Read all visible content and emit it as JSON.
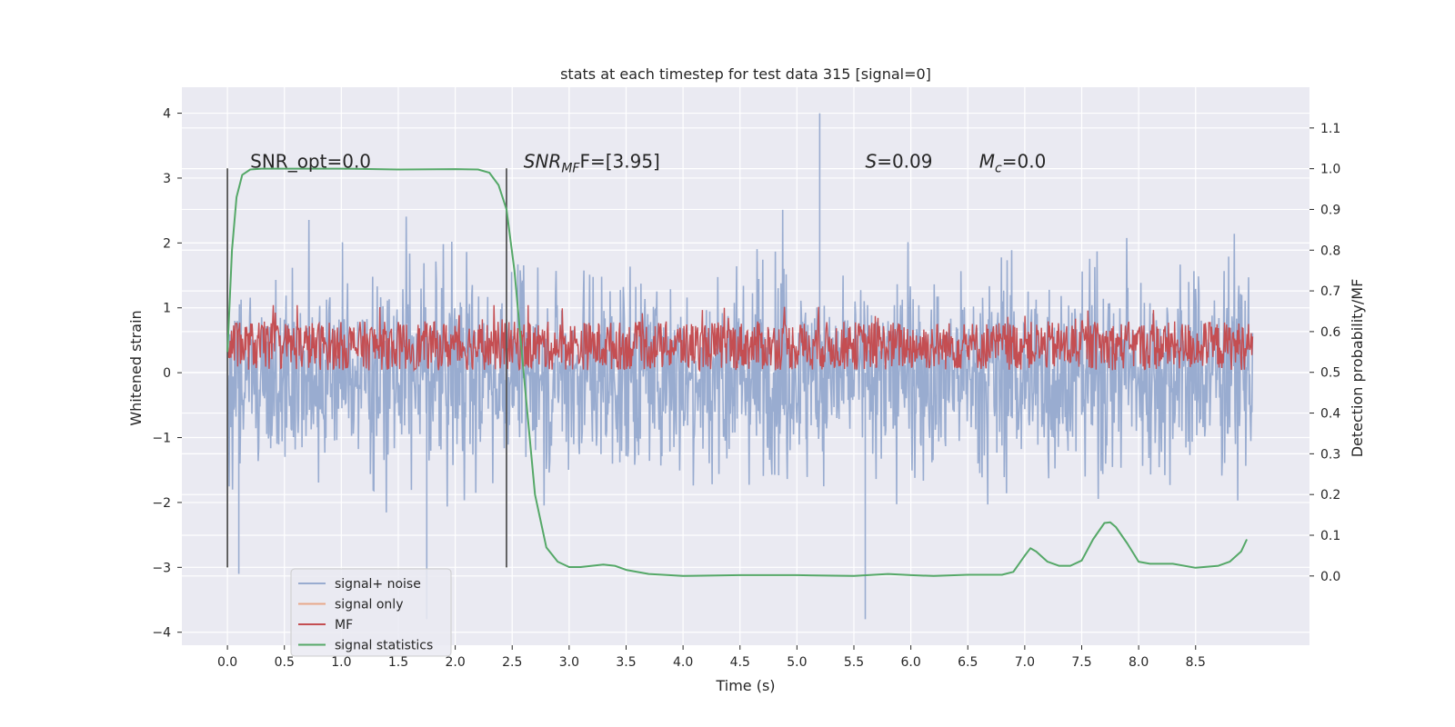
{
  "chart_data": {
    "type": "line",
    "title": "stats at each timestep for test data 315 [signal=0]",
    "xlabel": "Time (s)",
    "ylabel": "Whitened strain",
    "y2label": "Detection probability/MF",
    "xlim": [
      -0.4,
      9.5
    ],
    "ylim": [
      -4.2,
      4.4
    ],
    "y2lim": [
      -0.17,
      1.2
    ],
    "xticks": [
      0.0,
      0.5,
      1.0,
      1.5,
      2.0,
      2.5,
      3.0,
      3.5,
      4.0,
      4.5,
      5.0,
      5.5,
      6.0,
      6.5,
      7.0,
      7.5,
      8.0,
      8.5
    ],
    "yticks": [
      4,
      3,
      2,
      1,
      0,
      -1,
      -2,
      -3,
      -4
    ],
    "y2ticks": [
      1.1,
      1.0,
      0.9,
      0.8,
      0.7,
      0.6,
      0.5,
      0.4,
      0.3,
      0.2,
      0.1,
      0.0
    ],
    "grid": true,
    "legend_position": "lower-left",
    "colors": {
      "plot_bg": "#eaeaf2",
      "grid": "#ffffff",
      "noise": "#99acd0",
      "signal": "#e8a88a",
      "mf": "#c44e52",
      "stats": "#55a868",
      "vline": "#555555"
    },
    "annotations": [
      {
        "id": "snr-opt",
        "text": "SNR_opt=0.0",
        "x": 0.2,
        "y2": 1.0
      },
      {
        "id": "snr-mf",
        "text": "SNR",
        "sub": "MF",
        "rest": "F=[3.95]",
        "x": 2.6,
        "y2": 1.0
      },
      {
        "id": "s-stat",
        "text": "S",
        "rest": "=0.09",
        "x": 5.6,
        "y2": 1.0
      },
      {
        "id": "mc-stat",
        "text": "M",
        "sub": "c",
        "rest": "=0.0",
        "x": 6.6,
        "y2": 1.0
      }
    ],
    "vlines": [
      0.0,
      2.45
    ],
    "vline_range": [
      -3.0,
      3.15
    ],
    "series": [
      {
        "name": "signal+ noise",
        "key": "noise",
        "range": [
          0.0,
          9.0
        ],
        "typical": [
          -2.5,
          2.5
        ],
        "extremes": [
          {
            "x": 5.2,
            "y": 4.0
          },
          {
            "x": 5.6,
            "y": -3.8
          },
          {
            "x": 1.75,
            "y": -3.8
          },
          {
            "x": 0.1,
            "y": -3.1
          }
        ]
      },
      {
        "name": "signal only",
        "key": "signal",
        "values": []
      },
      {
        "name": "MF",
        "key": "mf",
        "range": [
          0.0,
          9.0
        ],
        "typical_y2": [
          0.5,
          0.65
        ]
      },
      {
        "name": "signal statistics",
        "key": "stats",
        "x": [
          0.0,
          0.04,
          0.08,
          0.13,
          0.2,
          0.3,
          0.5,
          1.0,
          1.5,
          2.0,
          2.2,
          2.3,
          2.38,
          2.45,
          2.52,
          2.6,
          2.7,
          2.8,
          2.9,
          3.0,
          3.1,
          3.2,
          3.3,
          3.4,
          3.5,
          3.7,
          4.0,
          4.5,
          5.0,
          5.5,
          5.8,
          6.0,
          6.2,
          6.5,
          6.8,
          6.9,
          7.0,
          7.05,
          7.1,
          7.2,
          7.3,
          7.4,
          7.5,
          7.6,
          7.7,
          7.75,
          7.8,
          7.9,
          8.0,
          8.1,
          8.3,
          8.5,
          8.7,
          8.8,
          8.9,
          8.95
        ],
        "y": [
          0.55,
          0.8,
          0.93,
          0.985,
          0.998,
          1.0,
          1.0,
          1.0,
          0.998,
          0.999,
          0.998,
          0.99,
          0.96,
          0.9,
          0.75,
          0.5,
          0.2,
          0.07,
          0.035,
          0.022,
          0.022,
          0.025,
          0.028,
          0.025,
          0.015,
          0.005,
          0.0,
          0.002,
          0.002,
          0.0,
          0.005,
          0.002,
          0.0,
          0.003,
          0.003,
          0.01,
          0.05,
          0.068,
          0.06,
          0.035,
          0.025,
          0.025,
          0.038,
          0.09,
          0.13,
          0.132,
          0.12,
          0.08,
          0.035,
          0.03,
          0.03,
          0.02,
          0.025,
          0.035,
          0.06,
          0.09
        ]
      }
    ]
  }
}
